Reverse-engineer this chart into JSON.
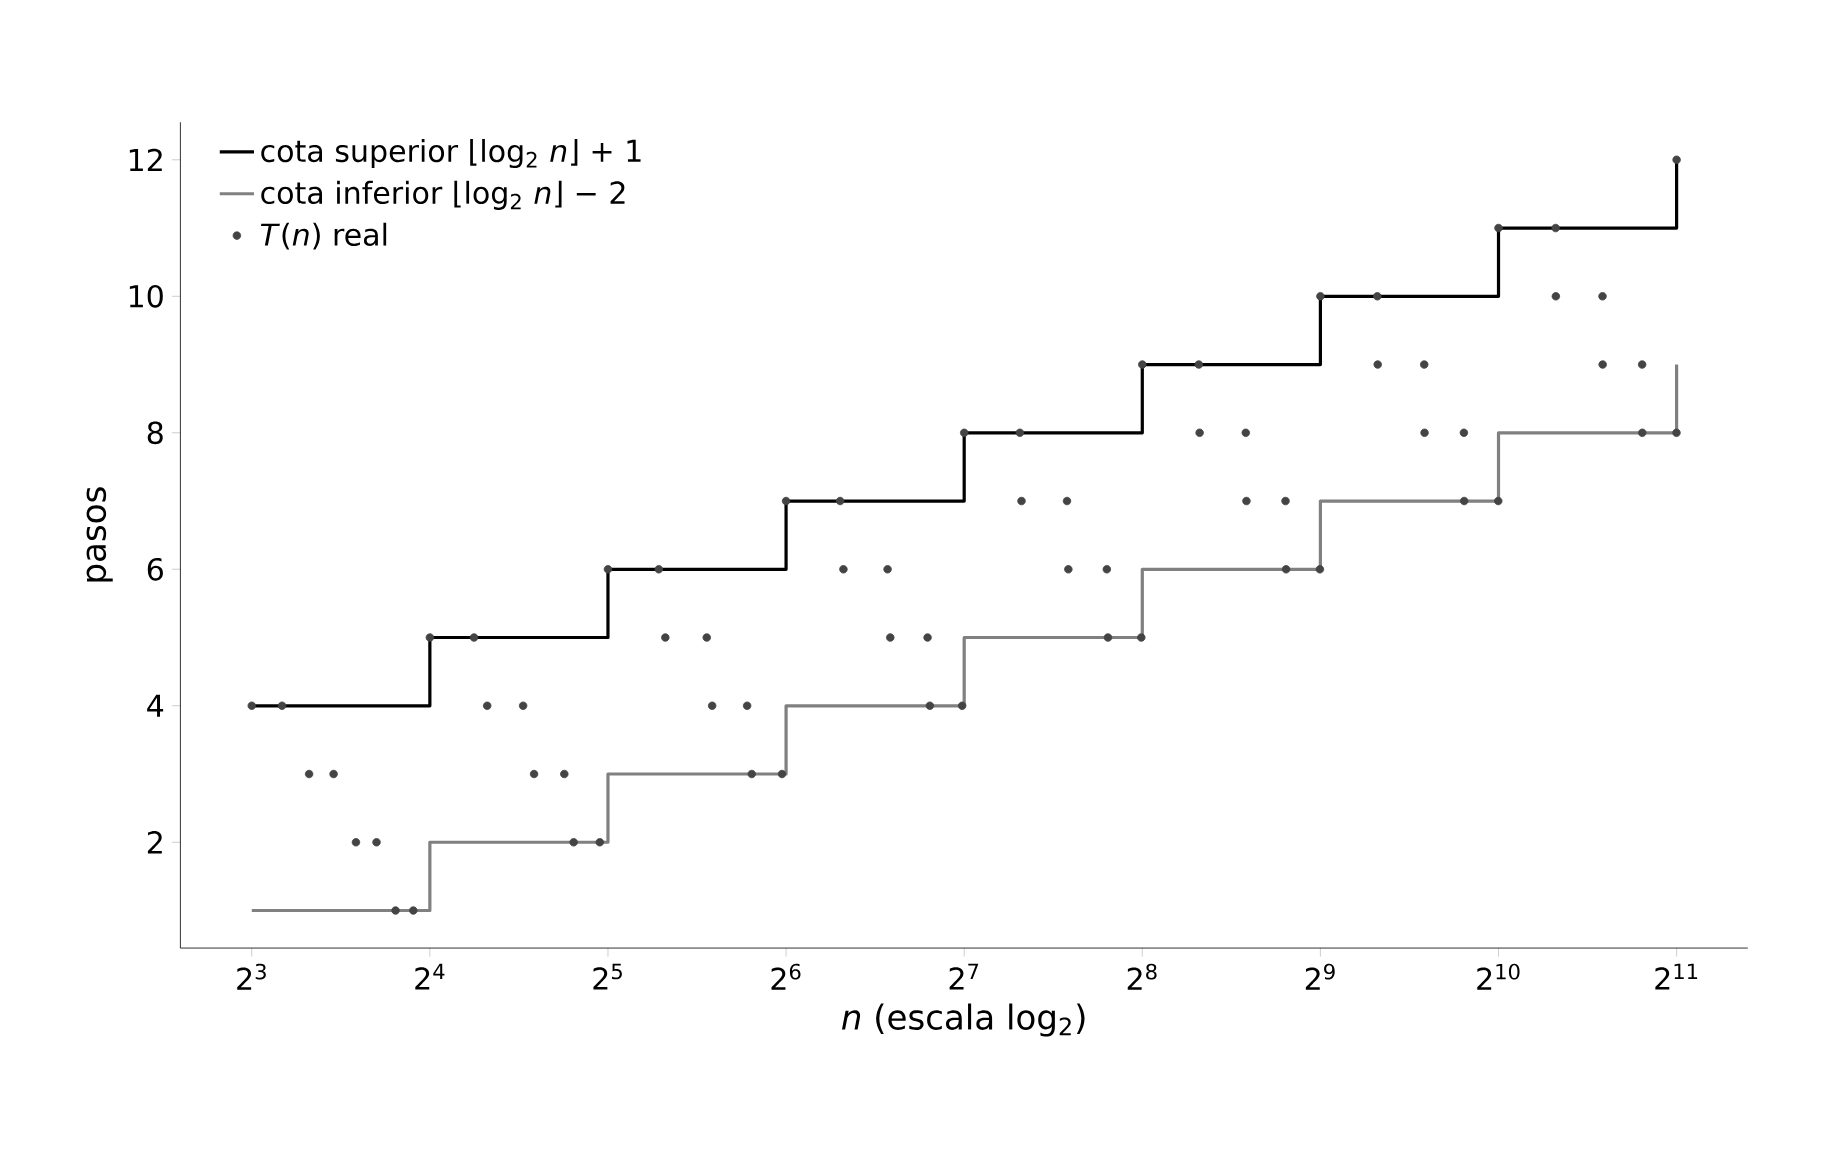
{
  "chart_data": {
    "type": "scatter",
    "xlabel": "*n*  (escala log$_{2}$)",
    "ylabel": "pasos",
    "log": "x",
    "xlim": [
      6.06,
      2702
    ],
    "ylim": [
      0.45,
      12.55
    ],
    "xticks": [
      {
        "value": 8,
        "label": "2$^{3}$"
      },
      {
        "value": 16,
        "label": "2$^{4}$"
      },
      {
        "value": 32,
        "label": "2$^{5}$"
      },
      {
        "value": 64,
        "label": "2$^{6}$"
      },
      {
        "value": 128,
        "label": "2$^{7}$"
      },
      {
        "value": 256,
        "label": "2$^{8}$"
      },
      {
        "value": 512,
        "label": "2$^{9}$"
      },
      {
        "value": 1024,
        "label": "2$^{10}$"
      },
      {
        "value": 2048,
        "label": "2$^{11}$"
      }
    ],
    "yticks": [
      2,
      4,
      6,
      8,
      10,
      12
    ],
    "grid": false,
    "legend": "top left",
    "series": [
      {
        "name": "cota superior ⌊log$_{2}$ *n*⌋ + 1",
        "type": "step",
        "color": "#000000",
        "x": [
          8,
          16,
          32,
          64,
          128,
          256,
          512,
          1024,
          2048
        ],
        "values": [
          4,
          5,
          6,
          7,
          8,
          9,
          10,
          11,
          12
        ]
      },
      {
        "name": "cota inferior ⌊log$_{2}$ *n*⌋ − 2",
        "type": "step",
        "color": "#808080",
        "x": [
          8,
          16,
          32,
          64,
          128,
          256,
          512,
          1024,
          2048
        ],
        "values": [
          1,
          2,
          3,
          4,
          5,
          6,
          7,
          8,
          9
        ]
      },
      {
        "name": "*T*(*n*) real",
        "color": "#444444",
        "x": [
          8,
          9,
          10,
          11,
          12,
          13,
          14,
          15,
          16,
          19,
          20,
          23,
          24,
          27,
          28,
          31,
          32,
          39,
          40,
          47,
          48,
          55,
          56,
          63,
          64,
          79,
          80,
          95,
          96,
          111,
          112,
          127,
          128,
          159,
          160,
          191,
          192,
          223,
          224,
          255,
          256,
          319,
          320,
          383,
          384,
          447,
          448,
          511,
          512,
          639,
          640,
          767,
          768,
          895,
          896,
          1023,
          1024,
          1279,
          1280,
          1535,
          1536,
          1791,
          1792,
          2047,
          2048
        ],
        "values": [
          4,
          4,
          3,
          3,
          2,
          2,
          1,
          1,
          5,
          5,
          4,
          4,
          3,
          3,
          2,
          2,
          6,
          6,
          5,
          5,
          4,
          4,
          3,
          3,
          7,
          7,
          6,
          6,
          5,
          5,
          4,
          4,
          8,
          8,
          7,
          7,
          6,
          6,
          5,
          5,
          9,
          9,
          8,
          8,
          7,
          7,
          6,
          6,
          10,
          10,
          9,
          9,
          8,
          8,
          7,
          7,
          11,
          11,
          10,
          10,
          9,
          9,
          8,
          8,
          12
        ]
      }
    ]
  }
}
